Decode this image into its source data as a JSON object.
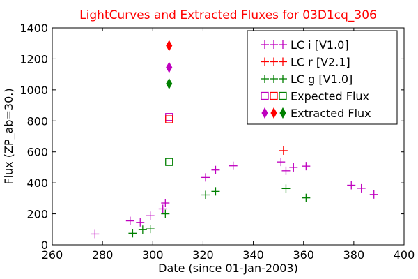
{
  "chart_data": {
    "type": "scatter",
    "title": "LightCurves and Extracted Fluxes for 03D1cq_306",
    "title_color": "#ff0000",
    "xlabel": "Date (since 01-Jan-2003)",
    "ylabel": "Flux (ZP_ab=30.)",
    "xlim": [
      260,
      400
    ],
    "ylim": [
      0,
      1400
    ],
    "x_ticks": [
      "260",
      "280",
      "300",
      "320",
      "340",
      "360",
      "380",
      "400"
    ],
    "y_ticks": [
      "0",
      "200",
      "400",
      "600",
      "800",
      "1000",
      "1200",
      "1400"
    ],
    "grid": false,
    "legend_position": "top-right",
    "series": [
      {
        "name": "LC i [V1.0]",
        "marker": "plus",
        "color": "#bf00bf",
        "points": [
          {
            "x": 277,
            "y": 70
          },
          {
            "x": 291,
            "y": 155
          },
          {
            "x": 295,
            "y": 145
          },
          {
            "x": 299,
            "y": 188
          },
          {
            "x": 304,
            "y": 232
          },
          {
            "x": 305,
            "y": 270
          },
          {
            "x": 321,
            "y": 435
          },
          {
            "x": 325,
            "y": 483
          },
          {
            "x": 332,
            "y": 510
          },
          {
            "x": 351,
            "y": 535
          },
          {
            "x": 353,
            "y": 478
          },
          {
            "x": 356,
            "y": 500
          },
          {
            "x": 361,
            "y": 508
          },
          {
            "x": 379,
            "y": 385
          },
          {
            "x": 383,
            "y": 365
          },
          {
            "x": 388,
            "y": 325
          }
        ]
      },
      {
        "name": "LC r [V2.1]",
        "marker": "plus",
        "color": "#ff0000",
        "points": [
          {
            "x": 352,
            "y": 608
          }
        ]
      },
      {
        "name": "LC g [V1.0]",
        "marker": "plus",
        "color": "#008000",
        "points": [
          {
            "x": 292,
            "y": 75
          },
          {
            "x": 296,
            "y": 98
          },
          {
            "x": 299,
            "y": 103
          },
          {
            "x": 305,
            "y": 200
          },
          {
            "x": 321,
            "y": 322
          },
          {
            "x": 325,
            "y": 345
          },
          {
            "x": 353,
            "y": 363
          },
          {
            "x": 361,
            "y": 303
          }
        ]
      },
      {
        "name": "Expected Flux",
        "marker": "square",
        "colors": [
          "#bf00bf",
          "#ff0000",
          "#008000"
        ],
        "points": [
          {
            "x": 306.5,
            "y": 825,
            "color": "#bf00bf"
          },
          {
            "x": 306.5,
            "y": 810,
            "color": "#ff0000"
          },
          {
            "x": 306.5,
            "y": 535,
            "color": "#008000"
          }
        ]
      },
      {
        "name": "Extracted Flux",
        "marker": "diamond",
        "colors": [
          "#bf00bf",
          "#ff0000",
          "#008000"
        ],
        "points": [
          {
            "x": 306.5,
            "y": 1145,
            "color": "#bf00bf"
          },
          {
            "x": 306.5,
            "y": 1285,
            "color": "#ff0000"
          },
          {
            "x": 306.5,
            "y": 1040,
            "color": "#008000"
          }
        ]
      }
    ]
  }
}
